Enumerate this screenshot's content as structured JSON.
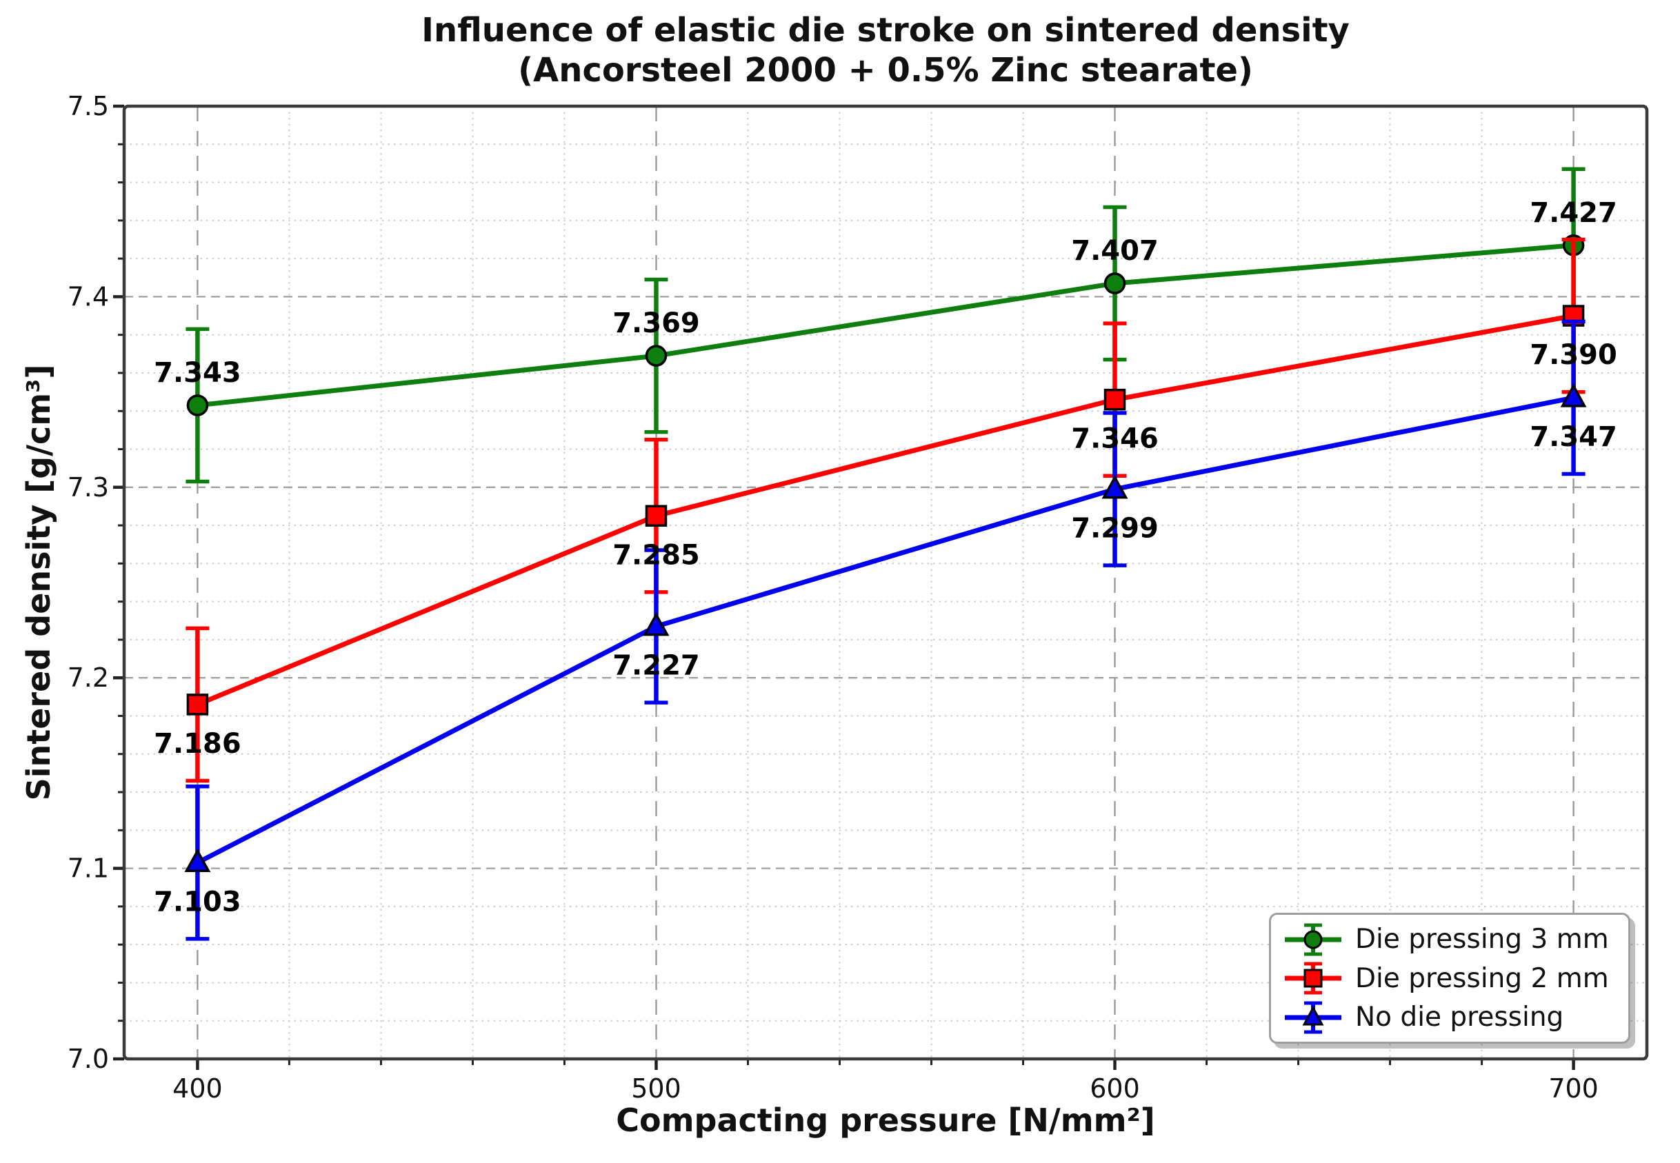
{
  "chart_data": {
    "type": "line",
    "title": "Influence of elastic die stroke on sintered density",
    "subtitle": "(Ancorsteel 2000 + 0.5% Zinc stearate)",
    "xlabel": "Compacting pressure [N/mm²]",
    "ylabel": "Sintered density [g/cm³]",
    "x": [
      400,
      500,
      600,
      700
    ],
    "x_ticks": [
      400,
      500,
      600,
      700
    ],
    "y_ticks": [
      7.0,
      7.1,
      7.2,
      7.3,
      7.4,
      7.5
    ],
    "xlim": [
      384,
      716
    ],
    "ylim": [
      7.0,
      7.5
    ],
    "x_minor_step": 20,
    "y_minor_step": 0.02,
    "grid": true,
    "error_bar": 0.04,
    "value_label_decimals": 3,
    "legend_position": "lower right",
    "series": [
      {
        "name": "Die pressing 3 mm",
        "marker": "circle",
        "color": "#0e7f0e",
        "values": [
          7.343,
          7.369,
          7.407,
          7.427
        ],
        "label_position": "above"
      },
      {
        "name": "Die pressing 2 mm",
        "marker": "square",
        "color": "#ff0000",
        "values": [
          7.186,
          7.285,
          7.346,
          7.39
        ],
        "label_position": "below"
      },
      {
        "name": "No die pressing",
        "marker": "triangle",
        "color": "#0000ee",
        "values": [
          7.103,
          7.227,
          7.299,
          7.347
        ],
        "label_position": "below"
      }
    ]
  }
}
